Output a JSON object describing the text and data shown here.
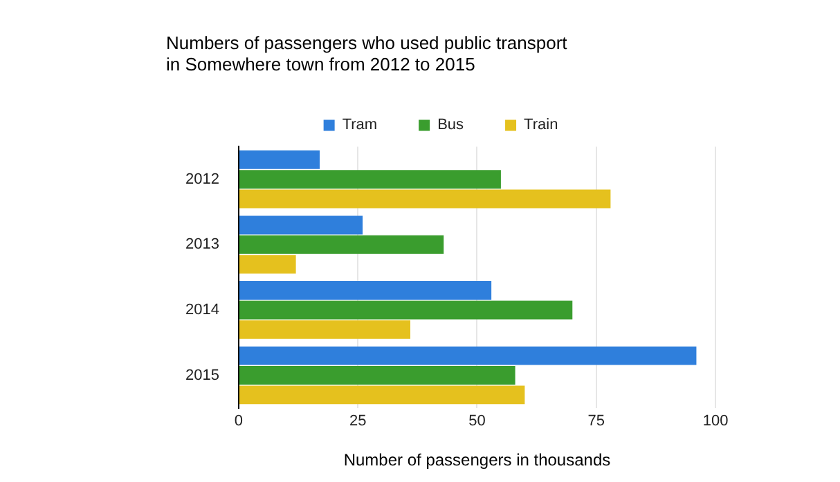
{
  "chart_data": {
    "type": "bar",
    "orientation": "horizontal",
    "title": "Numbers of passengers who used public transport\nin Somewhere town from 2012 to 2015",
    "xlabel": "Number of passengers in thousands",
    "categories": [
      "2012",
      "2013",
      "2014",
      "2015"
    ],
    "series": [
      {
        "name": "Tram",
        "color": "#2f7fdc",
        "values": [
          17,
          26,
          53,
          96
        ]
      },
      {
        "name": "Bus",
        "color": "#3a9d2e",
        "values": [
          55,
          43,
          70,
          58
        ]
      },
      {
        "name": "Train",
        "color": "#e5c11e",
        "values": [
          78,
          12,
          36,
          60
        ]
      }
    ],
    "xlim": [
      0,
      100
    ],
    "xticks": [
      0,
      25,
      50,
      75,
      100
    ],
    "grid": "x",
    "legend": "top"
  }
}
